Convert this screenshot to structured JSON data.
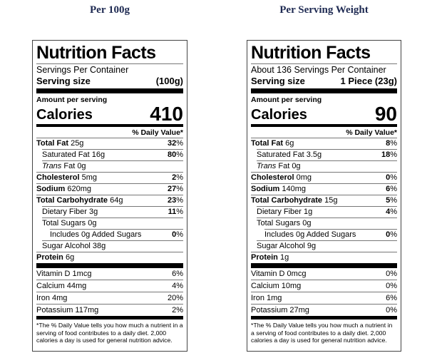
{
  "header_color": "#1e2a52",
  "columns": [
    {
      "header": "Per 100g",
      "label": {
        "title": "Nutrition Facts",
        "servings_line": "Servings Per Container",
        "serving_size_label": "Serving size",
        "serving_size_value": "(100g)",
        "amount_per_serving": "Amount per serving",
        "calories_label": "Calories",
        "calories_value": "410",
        "daily_value_header": "% Daily Value*",
        "nutrients": [
          {
            "bold": "Total Fat",
            "rest": " 25g",
            "indent": 0,
            "dv": "32",
            "dv_bold": true
          },
          {
            "rest": "Saturated Fat 16g",
            "indent": 1,
            "dv": "80",
            "dv_bold": true
          },
          {
            "italic": "Trans",
            "rest": " Fat 0g",
            "indent": 1
          },
          {
            "bold": "Cholesterol",
            "rest": " 5mg",
            "indent": 0,
            "dv": "2",
            "dv_bold": true
          },
          {
            "bold": "Sodium",
            "rest": " 620mg",
            "indent": 0,
            "dv": "27",
            "dv_bold": true
          },
          {
            "bold": "Total Carbohydrate",
            "rest": " 64g",
            "indent": 0,
            "dv": "23",
            "dv_bold": true
          },
          {
            "rest": "Dietary Fiber 3g",
            "indent": 1,
            "dv": "11",
            "dv_bold": true
          },
          {
            "rest": "Total Sugars 0g",
            "indent": 1
          },
          {
            "rest": "Includes 0g Added Sugars",
            "indent": 2,
            "dv": "0",
            "dv_bold": true
          },
          {
            "rest": "Sugar Alcohol 38g",
            "indent": 1
          },
          {
            "bold": "Protein",
            "rest": " 6g",
            "indent": 0
          }
        ],
        "vitamins": [
          {
            "rest": "Vitamin D 1mcg",
            "dv": "6"
          },
          {
            "rest": "Calcium 44mg",
            "dv": "4"
          },
          {
            "rest": "Iron 4mg",
            "dv": "20"
          },
          {
            "rest": "Potassium 117mg",
            "dv": "2"
          }
        ],
        "footnote": "*The % Daily Value tells you how much a nutrient in a serving of food contributes to a daily diet. 2,000 calories a day is used for general nutrition advice."
      }
    },
    {
      "header": "Per Serving Weight",
      "label": {
        "title": "Nutrition Facts",
        "servings_line": "About 136 Servings Per Container",
        "serving_size_label": "Serving size",
        "serving_size_value": "1 Piece (23g)",
        "amount_per_serving": "Amount per serving",
        "calories_label": "Calories",
        "calories_value": "90",
        "daily_value_header": "% Daily Value*",
        "nutrients": [
          {
            "bold": "Total Fat",
            "rest": " 6g",
            "indent": 0,
            "dv": "8",
            "dv_bold": true
          },
          {
            "rest": "Saturated Fat 3.5g",
            "indent": 1,
            "dv": "18",
            "dv_bold": true
          },
          {
            "italic": "Trans",
            "rest": " Fat 0g",
            "indent": 1
          },
          {
            "bold": "Cholesterol",
            "rest": " 0mg",
            "indent": 0,
            "dv": "0",
            "dv_bold": true
          },
          {
            "bold": "Sodium",
            "rest": " 140mg",
            "indent": 0,
            "dv": "6",
            "dv_bold": true
          },
          {
            "bold": "Total Carbohydrate",
            "rest": " 15g",
            "indent": 0,
            "dv": "5",
            "dv_bold": true
          },
          {
            "rest": "Dietary Fiber 1g",
            "indent": 1,
            "dv": "4",
            "dv_bold": true
          },
          {
            "rest": "Total Sugars 0g",
            "indent": 1
          },
          {
            "rest": "Includes 0g Added Sugars",
            "indent": 2,
            "dv": "0",
            "dv_bold": true
          },
          {
            "rest": "Sugar Alcohol 9g",
            "indent": 1
          },
          {
            "bold": "Protein",
            "rest": " 1g",
            "indent": 0
          }
        ],
        "vitamins": [
          {
            "rest": "Vitamin D 0mcg",
            "dv": "0"
          },
          {
            "rest": "Calcium 10mg",
            "dv": "0"
          },
          {
            "rest": "Iron 1mg",
            "dv": "6"
          },
          {
            "rest": "Potassium 27mg",
            "dv": "0"
          }
        ],
        "footnote": "*The % Daily Value tells you how much a nutrient in a serving of food contributes to a daily diet. 2,000 calories a day is used for general nutrition advice."
      }
    }
  ]
}
